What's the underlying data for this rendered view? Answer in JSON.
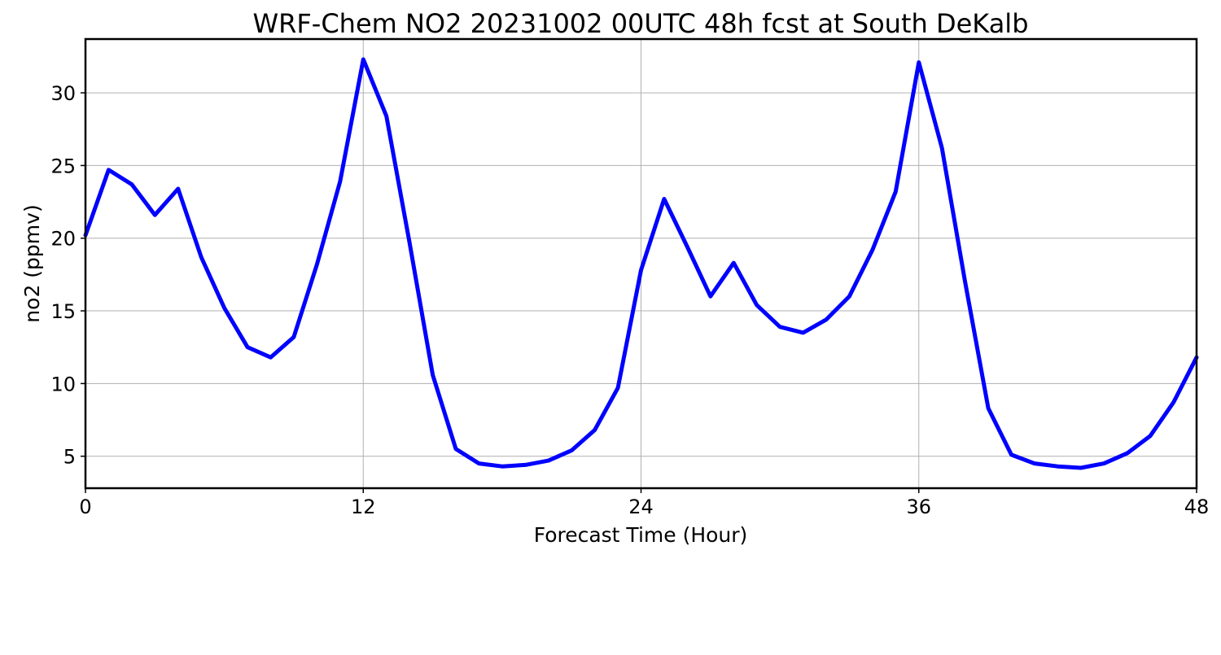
{
  "chart_data": {
    "type": "line",
    "title": "WRF-Chem NO2  20231002 00UTC 48h fcst at South DeKalb",
    "xlabel": "Forecast Time (Hour)",
    "ylabel": "no2  (ppmv)",
    "xlim": [
      0,
      48
    ],
    "ylim": [
      2.8,
      33.7
    ],
    "xticks": [
      0,
      12,
      24,
      36,
      48
    ],
    "yticks": [
      5,
      10,
      15,
      20,
      25,
      30
    ],
    "grid": true,
    "x": [
      0,
      1,
      2,
      3,
      4,
      5,
      6,
      7,
      8,
      9,
      10,
      11,
      12,
      13,
      14,
      15,
      16,
      17,
      18,
      19,
      20,
      21,
      22,
      23,
      24,
      25,
      26,
      27,
      28,
      29,
      30,
      31,
      32,
      33,
      34,
      35,
      36,
      37,
      38,
      39,
      40,
      41,
      42,
      43,
      44,
      45,
      46,
      47,
      48
    ],
    "series": [
      {
        "color": "#0000ff",
        "values": [
          20.2,
          24.7,
          23.7,
          21.6,
          23.4,
          18.7,
          15.2,
          12.5,
          11.8,
          13.2,
          18.2,
          23.9,
          32.3,
          28.4,
          19.7,
          10.6,
          5.5,
          4.5,
          4.3,
          4.4,
          4.7,
          5.4,
          6.8,
          9.7,
          17.8,
          22.7,
          19.4,
          16.0,
          18.3,
          15.4,
          13.9,
          13.5,
          14.4,
          16.0,
          19.2,
          23.2,
          32.1,
          26.2,
          17.0,
          8.3,
          5.1,
          4.5,
          4.3,
          4.2,
          4.5,
          5.2,
          6.4,
          8.7,
          11.8
        ]
      }
    ]
  }
}
